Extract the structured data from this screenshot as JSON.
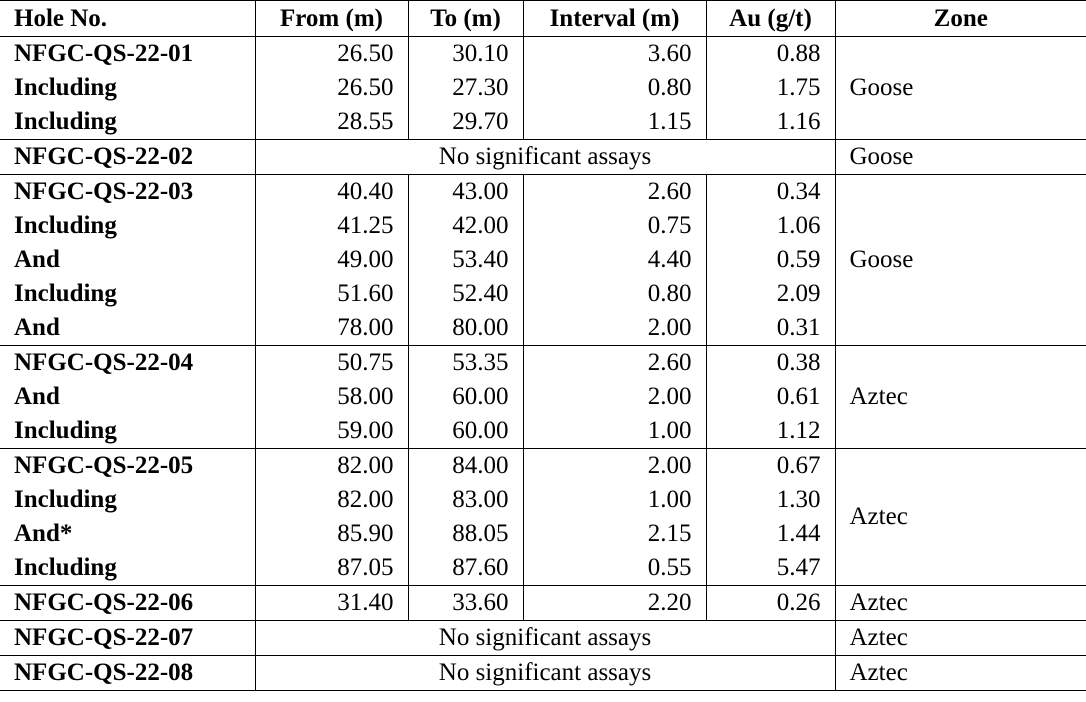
{
  "table": {
    "header": [
      "Hole No.",
      "From (m)",
      "To (m)",
      "Interval (m)",
      "Au (g/t)",
      "Zone"
    ],
    "groups": [
      {
        "zone": "Goose",
        "rows": [
          [
            "NFGC-QS-22-01",
            "26.50",
            "30.10",
            "3.60",
            "0.88"
          ],
          [
            "Including",
            "26.50",
            "27.30",
            "0.80",
            "1.75"
          ],
          [
            "Including",
            "28.55",
            "29.70",
            "1.15",
            "1.16"
          ]
        ]
      },
      {
        "zone": "Goose",
        "rows": [
          [
            "NFGC-QS-22-02",
            "No significant assays"
          ]
        ]
      },
      {
        "zone": "Goose",
        "rows": [
          [
            "NFGC-QS-22-03",
            "40.40",
            "43.00",
            "2.60",
            "0.34"
          ],
          [
            "Including",
            "41.25",
            "42.00",
            "0.75",
            "1.06"
          ],
          [
            "And",
            "49.00",
            "53.40",
            "4.40",
            "0.59"
          ],
          [
            "Including",
            "51.60",
            "52.40",
            "0.80",
            "2.09"
          ],
          [
            "And",
            "78.00",
            "80.00",
            "2.00",
            "0.31"
          ]
        ]
      },
      {
        "zone": "Aztec",
        "rows": [
          [
            "NFGC-QS-22-04",
            "50.75",
            "53.35",
            "2.60",
            "0.38"
          ],
          [
            "And",
            "58.00",
            "60.00",
            "2.00",
            "0.61"
          ],
          [
            "Including",
            "59.00",
            "60.00",
            "1.00",
            "1.12"
          ]
        ]
      },
      {
        "zone": "Aztec",
        "rows": [
          [
            "NFGC-QS-22-05",
            "82.00",
            "84.00",
            "2.00",
            "0.67"
          ],
          [
            "Including",
            "82.00",
            "83.00",
            "1.00",
            "1.30"
          ],
          [
            "And*",
            "85.90",
            "88.05",
            "2.15",
            "1.44"
          ],
          [
            "Including",
            "87.05",
            "87.60",
            "0.55",
            "5.47"
          ]
        ]
      },
      {
        "zone": "Aztec",
        "rows": [
          [
            "NFGC-QS-22-06",
            "31.40",
            "33.60",
            "2.20",
            "0.26"
          ]
        ]
      },
      {
        "zone": "Aztec",
        "rows": [
          [
            "NFGC-QS-22-07",
            "No significant assays"
          ]
        ]
      },
      {
        "zone": "Aztec",
        "rows": [
          [
            "NFGC-QS-22-08",
            "No significant assays"
          ]
        ]
      }
    ]
  }
}
